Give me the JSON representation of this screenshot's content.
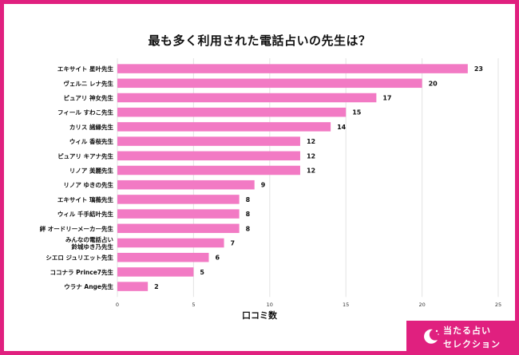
{
  "title": "最も多く利用された電話占いの先生は？",
  "brand": {
    "line1": "当たる占い",
    "line2": "セレクション",
    "icon": "crescent-moon-stars-icon"
  },
  "colors": {
    "bar": "#f27ac4",
    "frame": "#e0207f",
    "grid": "#e3e3e3"
  },
  "chart_data": {
    "type": "bar",
    "orientation": "horizontal",
    "xlabel": "口コミ数",
    "xlim": [
      0,
      25
    ],
    "xticks": [
      0,
      5,
      10,
      15,
      20,
      25
    ],
    "grid": true,
    "categories": [
      "エキサイト 星叶先生",
      "ヴェルニ レナ先生",
      "ピュアリ 神女先生",
      "フィール すわこ先生",
      "カリス 諸縁先生",
      "ウィル 香桜先生",
      "ピュアリ キアナ先生",
      "リノア 美麗先生",
      "リノア ゆきの先生",
      "エキサイト 璃薇先生",
      "ウィル 千手結叶先生",
      "絆 オードリーメーカー先生",
      "みんなの電話占い\n鈴城ゆき乃先生",
      "シエロ ジュリエット先生",
      "ココナラ Prince7先生",
      "ウラナ Ange先生"
    ],
    "values": [
      23,
      20,
      17,
      15,
      14,
      12,
      12,
      12,
      9,
      8,
      8,
      8,
      7,
      6,
      5,
      2
    ]
  }
}
